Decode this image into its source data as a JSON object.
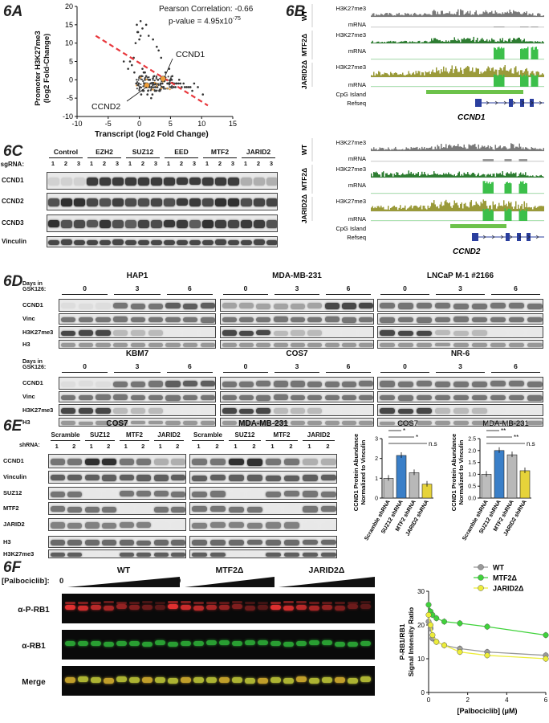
{
  "panels": {
    "a": "6A",
    "b": "6B",
    "c": "6C",
    "d": "6D",
    "e": "6E",
    "f": "6F"
  },
  "panel_a": {
    "pearson": "Pearson Correlation: -0.66",
    "pvalue_prefix": "p-value = 4.95x10",
    "pvalue_exp": "-75",
    "ylabel_line1": "Promoter H3K27me3",
    "ylabel_line2": "(log2 Fold-Change)",
    "xlabel": "Transcript (log2 Fold Change)",
    "gene1": "CCND1",
    "gene2": "CCND2",
    "colors": {
      "fit": "#e8373c",
      "highlight": "#f0a03c",
      "points": "#333333"
    }
  },
  "chart_data": {
    "type": "scatter",
    "xlim": [
      -10,
      15
    ],
    "ylim": [
      -10,
      20
    ],
    "xticks": [
      "-10",
      "-5",
      "0",
      "5",
      "10",
      "15"
    ],
    "yticks": [
      "20",
      "15",
      "10",
      "5",
      "0",
      "-5",
      "-10"
    ],
    "fit_line": {
      "x": [
        -7,
        11
      ],
      "y": [
        12,
        -7
      ]
    },
    "labeled_points": [
      {
        "name": "CCND1",
        "x": 3.8,
        "y": 0.3
      },
      {
        "name": "CCND2",
        "x": 1.2,
        "y": -1.5
      }
    ],
    "series": [
      {
        "x": [
          0.2,
          0.5,
          -0.3,
          1.1,
          1.5,
          2.2,
          2.8,
          3.1,
          3.5,
          4.2,
          4.8,
          5.3,
          6.0,
          6.4,
          7.1,
          7.6,
          8.2,
          0.8,
          1.9,
          2.5,
          3.3,
          -0.8,
          -1.2,
          0.3,
          1.4,
          2.1,
          2.7,
          3.9,
          4.5,
          5.1,
          5.8,
          6.6,
          7.3,
          8.8,
          9.4,
          -0.5,
          0.9,
          1.7,
          2.4,
          3.0,
          3.7,
          4.4,
          5.0,
          5.6,
          6.3,
          -1.8,
          -2.5,
          0.1,
          0.6,
          1.2,
          1.8,
          2.6,
          3.4,
          4.1,
          4.9,
          5.5,
          0.4,
          1.0,
          1.6,
          2.3,
          2.9,
          0.7,
          1.3,
          1.9,
          2.0,
          2.4,
          3.2,
          3.8,
          4.6,
          5.2,
          5.9,
          6.8,
          7.9,
          -0.1,
          0.3,
          0.9,
          1.5,
          2.1,
          -0.4,
          -0.2,
          0.0,
          0.2,
          -0.6,
          0.5,
          0.7,
          1.1,
          -0.9,
          -1.5,
          2.6,
          3.6,
          10.2,
          8.5
        ],
        "y": [
          16,
          14,
          13,
          15,
          12,
          11,
          9,
          8,
          6,
          2,
          3,
          1,
          -1,
          0,
          -1,
          -2,
          -2,
          -1,
          -2,
          -3,
          -3,
          2,
          4,
          -4,
          -3,
          -4,
          -3,
          -2,
          -1,
          -2,
          -2,
          -1,
          -2,
          -1,
          -2,
          -1,
          0,
          0,
          1,
          0,
          -1,
          0,
          0,
          -1,
          -1,
          3,
          5,
          -2,
          -3,
          -2,
          -1,
          -2,
          -1,
          0,
          -1,
          -2,
          1,
          -1,
          -2,
          -1,
          -2,
          -3,
          -4,
          -5,
          -2,
          -1,
          -3,
          -2,
          -1,
          0,
          -1,
          -2,
          -2,
          -1,
          1,
          2,
          0,
          -1,
          15,
          13,
          11,
          12,
          10,
          3,
          2,
          1,
          6,
          5,
          -1,
          -2,
          -4,
          -3
        ]
      }
    ]
  },
  "panel_b": {
    "block1": {
      "gene": "CCND1",
      "rows": [
        "H3K27me3",
        "mRNA",
        "H3K27me3",
        "mRNA",
        "H3K27me3",
        "mRNA",
        "CpG Island",
        "Refseq"
      ],
      "groups": [
        "WT",
        "MTF2Δ",
        "JARID2Δ"
      ]
    },
    "block2": {
      "gene": "CCND2",
      "rows": [
        "H3K27me3",
        "mRNA",
        "H3K27me3",
        "mRNA",
        "H3K27me3",
        "mRNA",
        "CpG Island",
        "Refseq"
      ],
      "groups": [
        "WT",
        "MTF2Δ",
        "JARID2Δ"
      ]
    },
    "colors": {
      "wt": "#7a7a7a",
      "mtf2": "#2e7d32",
      "jarid2": "#9a9a3a",
      "mrna": "#3cbf4a",
      "cpg": "#6cc24a",
      "refseq": "#2a3e9e"
    }
  },
  "panel_c": {
    "groups": [
      "Control",
      "EZH2",
      "SUZ12",
      "EED",
      "MTF2",
      "JARID2"
    ],
    "sgrna_label": "sgRNA:",
    "ticks": [
      "1",
      "2",
      "3"
    ],
    "rows": [
      "CCND1",
      "CCND2",
      "CCND3",
      "Vinculin"
    ]
  },
  "panel_d": {
    "days_label": "Days in GSK126:",
    "days": [
      "0",
      "3",
      "6"
    ],
    "top_cells": [
      "HAP1",
      "MDA-MB-231",
      "LNCaP M-1 #2166"
    ],
    "bottom_cells": [
      "KBM7",
      "COS7",
      "NR-6"
    ],
    "rows": [
      "CCND1",
      "Vinc",
      "H3K27me3",
      "H3"
    ]
  },
  "panel_e": {
    "cells": [
      "COS7",
      "MDA-MB-231"
    ],
    "shrna_label": "shRNA:",
    "groups": [
      "Scramble",
      "SUZ12",
      "MTF2",
      "JARID2"
    ],
    "ticks": [
      "1",
      "2"
    ],
    "rows": [
      "CCND1",
      "Vinculin",
      "SUZ12",
      "MTF2",
      "JARID2",
      "H3",
      "H3K27me3"
    ],
    "bar_titles": [
      "COS7",
      "MDA-MB-231"
    ],
    "bar_ylabel_1": "CCND1 Protein Abundance",
    "bar_ylabel_2": "Normalized to Vinculin",
    "bar_categories": [
      "Scramble shRNA",
      "SUZ12 shRNA",
      "MTF2 shRNA",
      "JARID2 shRNA"
    ],
    "bar1_values": [
      1.0,
      2.15,
      1.28,
      0.7
    ],
    "bar2_values": [
      1.0,
      2.0,
      1.82,
      1.15
    ],
    "bar1_sig": [
      "*",
      "*",
      "n.s"
    ],
    "bar2_sig": [
      "**",
      "**",
      "n.s"
    ],
    "bar1_yticks": [
      "3",
      "2",
      "1",
      "0"
    ],
    "bar2_yticks": [
      "2.5",
      "2.0",
      "1.5",
      "1.0",
      "0.5",
      "0.0"
    ],
    "bar_colors": [
      "#bdbdbd",
      "#3a7fc8",
      "#b8b8b8",
      "#e6d33a"
    ]
  },
  "panel_f": {
    "conc_label": "[Palbociclib]:",
    "zero": "0",
    "groups": [
      "WT",
      "MTF2Δ",
      "JARID2Δ"
    ],
    "rows": [
      "α-P-RB1",
      "α-RB1",
      "Merge"
    ],
    "ylabel_1": "P-RB1/RB1",
    "ylabel_2": "Signal Intensity Ratio",
    "xlabel": "[Palbociclib] (μM)",
    "xticks": [
      "0",
      "2",
      "4",
      "6"
    ],
    "yticks": [
      "30",
      "20",
      "10",
      "0"
    ],
    "legend": [
      "WT",
      "MTF2Δ",
      "JARID2Δ"
    ],
    "line_colors": [
      "#999999",
      "#3fd23a",
      "#eded3a"
    ],
    "x": [
      0,
      0.1,
      0.2,
      0.4,
      0.8,
      1.6,
      3,
      6
    ],
    "wt": [
      21,
      19,
      16,
      15,
      14,
      13,
      12,
      11
    ],
    "mtf2": [
      26,
      24,
      23,
      22,
      21,
      20.5,
      19.5,
      17
    ],
    "jarid2": [
      23,
      20,
      17,
      15,
      14,
      12,
      11,
      10
    ]
  }
}
